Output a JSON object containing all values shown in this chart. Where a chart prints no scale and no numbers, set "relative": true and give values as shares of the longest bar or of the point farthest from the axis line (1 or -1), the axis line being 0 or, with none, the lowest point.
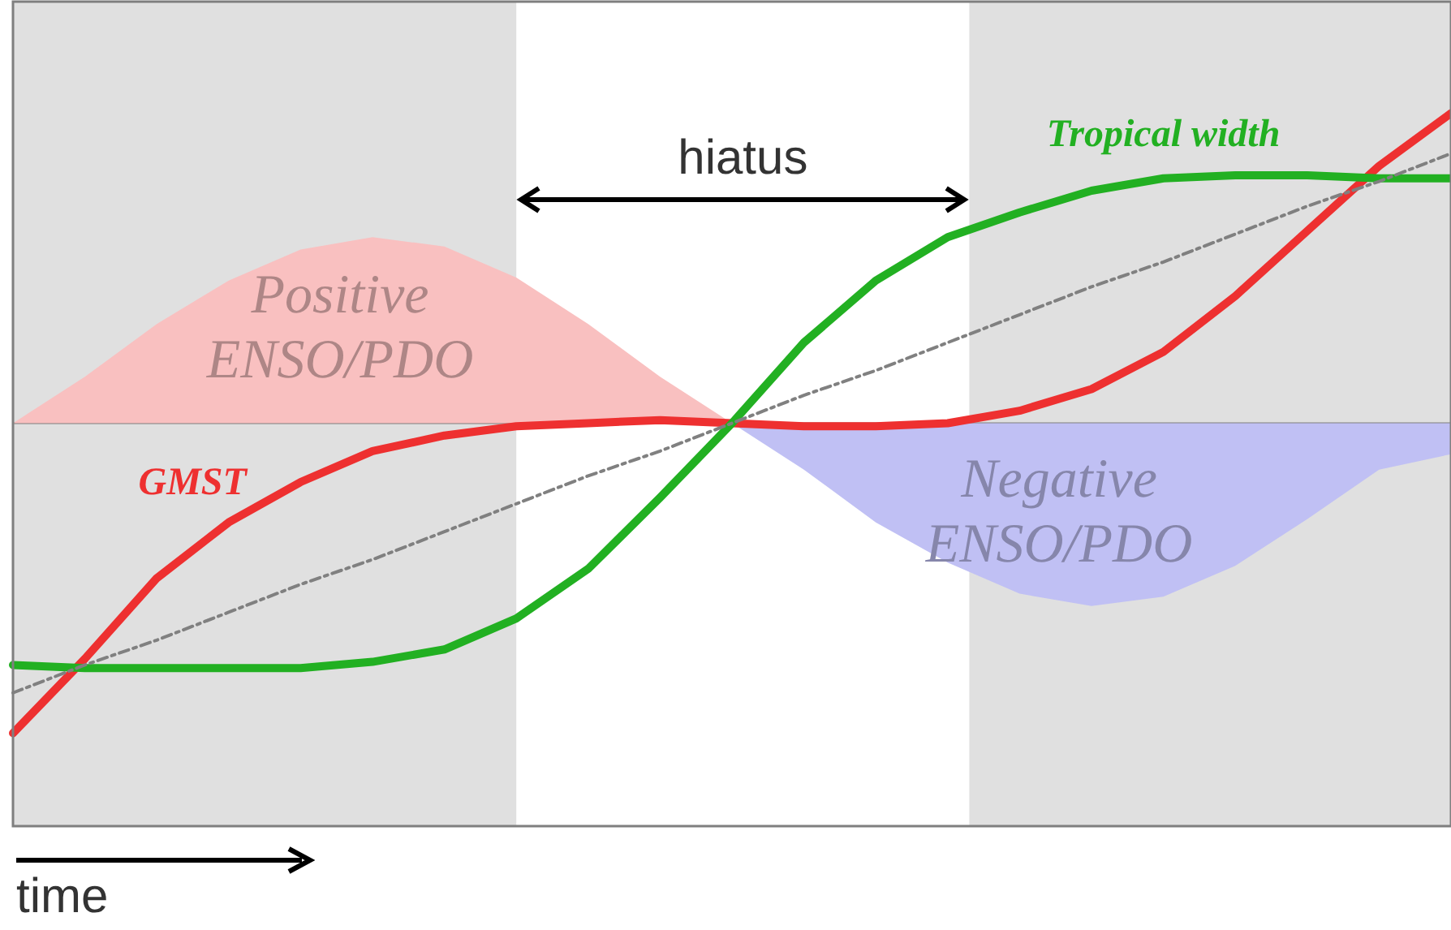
{
  "chart_data": {
    "type": "line",
    "relative": true,
    "categories": [
      null,
      null,
      null,
      null,
      null,
      null,
      null,
      null,
      null,
      null,
      null,
      null,
      null,
      null,
      null,
      null,
      null,
      null,
      null,
      null,
      null
    ],
    "tick_labels": false,
    "legend": false,
    "marker": "none",
    "series": [
      {
        "name": "Positive ENSO/PDO",
        "type": "area",
        "color": "#f9c0c0",
        "values": [
          0,
          0.15,
          0.32,
          0.46,
          0.56,
          0.6,
          0.57,
          0.47,
          0.32,
          0.15,
          0,
          null,
          null,
          null,
          null,
          null,
          null,
          null,
          null,
          null,
          null
        ]
      },
      {
        "name": "Negative ENSO/PDO",
        "type": "area",
        "color": "#c0c0f4",
        "values": [
          null,
          null,
          null,
          null,
          null,
          null,
          null,
          null,
          null,
          null,
          0,
          -0.15,
          -0.32,
          -0.45,
          -0.55,
          -0.59,
          -0.56,
          -0.46,
          -0.31,
          -0.15,
          -0.1
        ]
      },
      {
        "type": "line",
        "color": "#808080",
        "line_style": "dotted",
        "values": [
          -0.87,
          -0.78,
          -0.7,
          -0.61,
          -0.52,
          -0.44,
          -0.35,
          -0.26,
          -0.17,
          -0.09,
          0,
          0.09,
          0.17,
          0.26,
          0.35,
          0.44,
          0.52,
          0.61,
          0.7,
          0.78,
          0.87
        ]
      },
      {
        "name": "Tropical width",
        "type": "line",
        "color": "#22b022",
        "values": [
          -0.78,
          -0.79,
          -0.79,
          -0.79,
          -0.79,
          -0.77,
          -0.73,
          -0.63,
          -0.47,
          -0.24,
          0,
          0.26,
          0.46,
          0.6,
          0.68,
          0.75,
          0.79,
          0.8,
          0.8,
          0.79,
          0.79
        ]
      },
      {
        "name": "GMST",
        "type": "line",
        "color": "#ee3030",
        "values": [
          -1,
          -0.76,
          -0.5,
          -0.32,
          -0.19,
          -0.09,
          -0.04,
          -0.01,
          0,
          0.01,
          0,
          -0.01,
          -0.01,
          0,
          0.04,
          0.11,
          0.23,
          0.41,
          0.62,
          0.83,
          1
        ]
      }
    ],
    "annotations": [
      "hiatus",
      "time"
    ]
  }
}
